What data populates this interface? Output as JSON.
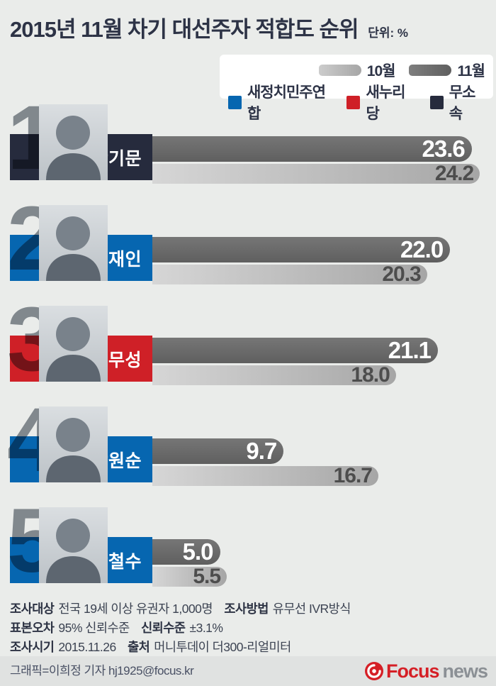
{
  "title": {
    "prefix": "2015년 11월",
    "main": "차기 대선주자 적합도 순위",
    "unit": "단위: %"
  },
  "legend": {
    "months": [
      {
        "label": "10월"
      },
      {
        "label": "11월"
      }
    ],
    "parties": [
      {
        "label": "새정치민주연합",
        "color": "#0666b0"
      },
      {
        "label": "새누리당",
        "color": "#cf2027"
      },
      {
        "label": "무소속",
        "color": "#262b3d"
      }
    ]
  },
  "candidates": [
    {
      "rank": "1",
      "name": "반기문",
      "party": "무소속",
      "color": "#262b3d",
      "nov": "23.6",
      "oct": "24.2"
    },
    {
      "rank": "2",
      "name": "문재인",
      "party": "새정치민주연합",
      "color": "#0666b0",
      "nov": "22.0",
      "oct": "20.3"
    },
    {
      "rank": "3",
      "name": "김무성",
      "party": "새누리당",
      "color": "#cf2027",
      "nov": "21.1",
      "oct": "18.0"
    },
    {
      "rank": "4",
      "name": "박원순",
      "party": "새정치민주연합",
      "color": "#0666b0",
      "nov": "9.7",
      "oct": "16.7"
    },
    {
      "rank": "5",
      "name": "안철수",
      "party": "새정치민주연합",
      "color": "#0666b0",
      "nov": "5.0",
      "oct": "5.5"
    }
  ],
  "chart_data": {
    "type": "bar",
    "title": "2015년 11월 차기 대선주자 적합도 순위",
    "unit": "%",
    "orientation": "horizontal",
    "categories": [
      "반기문",
      "문재인",
      "김무성",
      "박원순",
      "안철수"
    ],
    "series": [
      {
        "name": "11월",
        "values": [
          23.6,
          22.0,
          21.1,
          9.7,
          5.0
        ],
        "color": "#6a6a6a"
      },
      {
        "name": "10월",
        "values": [
          24.2,
          20.3,
          18.0,
          16.7,
          5.5
        ],
        "color": "#b5b5b5"
      }
    ],
    "category_party": [
      "무소속",
      "새정치민주연합",
      "새누리당",
      "새정치민주연합",
      "새정치민주연합"
    ],
    "xlim": [
      0,
      25
    ],
    "grid": false,
    "legend_position": "top-right"
  },
  "footnotes": [
    {
      "l1": "조사대상",
      "t1": "전국 19세 이상 유권자 1,000명",
      "l2": "조사방법",
      "t2": "유무선 IVR방식"
    },
    {
      "l1": "표본오차",
      "t1": "95% 신뢰수준",
      "l2": "신뢰수준",
      "t2": "±3.1%"
    },
    {
      "l1": "조사시기",
      "t1": "2015.11.26",
      "l2": "출처",
      "t2": "머니투데이 더300-리얼미터"
    }
  ],
  "credit": "그래픽=이희정 기자 hj1925@focus.kr",
  "logo": {
    "brand": "Focus",
    "suffix": "news"
  }
}
